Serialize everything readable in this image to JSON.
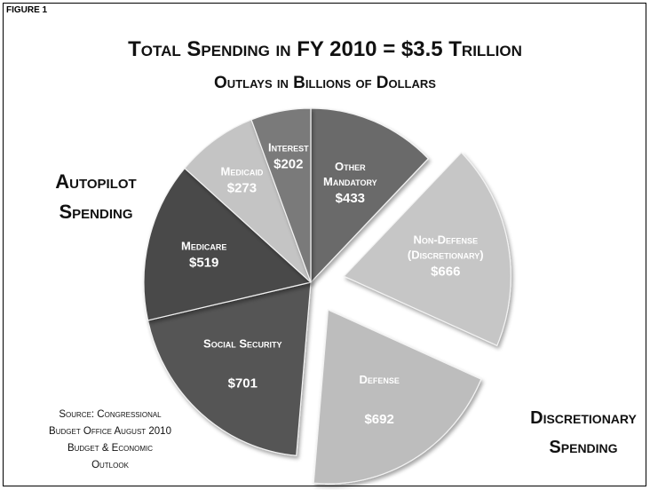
{
  "figure_label": "FIGURE 1",
  "group_labels": {
    "autopilot_line1": "Autopilot",
    "autopilot_line2": "Spending",
    "discretionary_line1": "Discretionary",
    "discretionary_line2": "Spending"
  },
  "source": {
    "line1": "Source: Congressional",
    "line2": "Budget Office August 2010",
    "line3": "Budget & Economic",
    "line4": "Outlook"
  },
  "colors": {
    "social_security": "#555555",
    "medicare": "#4a4a4a",
    "medicaid": "#c4c4c4",
    "interest": "#7a7a7a",
    "other_mandatory": "#6a6a6a",
    "non_defense": "#c6c6c6",
    "defense": "#bdbdbd"
  },
  "chart_data": {
    "type": "pie",
    "title": "Total Spending in FY 2010 = $3.5 Trillion",
    "subtitle": "Outlays in Billions of Dollars",
    "slices": [
      {
        "name": "Other Mandatory",
        "label_lines": [
          "Other",
          "Mandatory"
        ],
        "value_label": "$433",
        "value": 433,
        "group": "autopilot",
        "exploded": false
      },
      {
        "name": "Non-Defense (Discretionary)",
        "label_lines": [
          "Non-Defense",
          "(Discretionary)"
        ],
        "value_label": "$666",
        "value": 666,
        "group": "discretionary",
        "exploded": true
      },
      {
        "name": "Defense",
        "label_lines": [
          "Defense"
        ],
        "value_label": "$692",
        "value": 692,
        "group": "discretionary",
        "exploded": true
      },
      {
        "name": "Social Security",
        "label_lines": [
          "Social Security"
        ],
        "value_label": "$701",
        "value": 701,
        "group": "autopilot",
        "exploded": false
      },
      {
        "name": "Medicare",
        "label_lines": [
          "Medicare"
        ],
        "value_label": "$519",
        "value": 519,
        "group": "autopilot",
        "exploded": false
      },
      {
        "name": "Medicaid",
        "label_lines": [
          "Medicaid"
        ],
        "value_label": "$273",
        "value": 273,
        "group": "autopilot",
        "exploded": false
      },
      {
        "name": "Interest",
        "label_lines": [
          "Interest"
        ],
        "value_label": "$202",
        "value": 202,
        "group": "autopilot",
        "exploded": false
      }
    ],
    "legend": "none"
  }
}
